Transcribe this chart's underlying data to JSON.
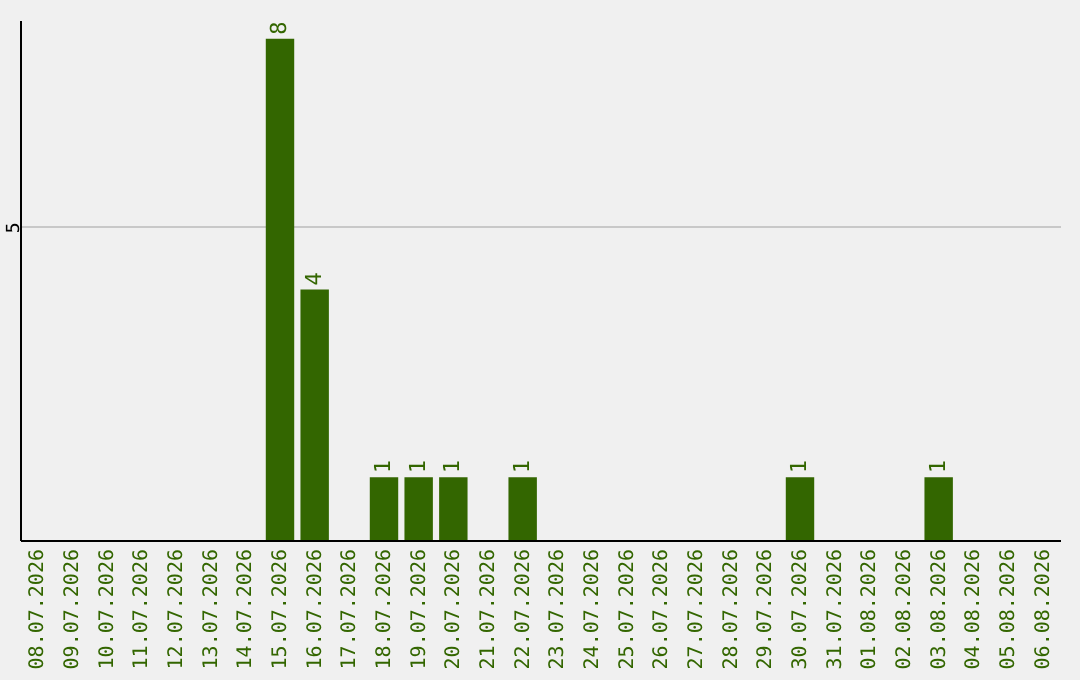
{
  "chart_data": {
    "type": "bar",
    "categories": [
      "08.07.2026",
      "09.07.2026",
      "10.07.2026",
      "11.07.2026",
      "12.07.2026",
      "13.07.2026",
      "14.07.2026",
      "15.07.2026",
      "16.07.2026",
      "17.07.2026",
      "18.07.2026",
      "19.07.2026",
      "20.07.2026",
      "21.07.2026",
      "22.07.2026",
      "23.07.2026",
      "24.07.2026",
      "25.07.2026",
      "26.07.2026",
      "27.07.2026",
      "28.07.2026",
      "29.07.2026",
      "30.07.2026",
      "31.07.2026",
      "01.08.2026",
      "02.08.2026",
      "03.08.2026",
      "04.08.2026",
      "05.08.2026",
      "06.08.2026"
    ],
    "values": [
      0,
      0,
      0,
      0,
      0,
      0,
      0,
      8,
      4,
      0,
      1,
      1,
      1,
      0,
      1,
      0,
      0,
      0,
      0,
      0,
      0,
      0,
      1,
      0,
      0,
      0,
      1,
      0,
      0,
      0
    ],
    "value_labels": [
      null,
      null,
      null,
      null,
      null,
      null,
      null,
      "8",
      "4",
      null,
      "1",
      "1",
      "1",
      null,
      "1",
      null,
      null,
      null,
      null,
      null,
      null,
      null,
      "1",
      null,
      null,
      null,
      "1",
      null,
      null,
      null
    ],
    "color": "#336600",
    "ylim": [
      0,
      8.3
    ],
    "yticks": [
      5
    ],
    "grid": "y"
  }
}
